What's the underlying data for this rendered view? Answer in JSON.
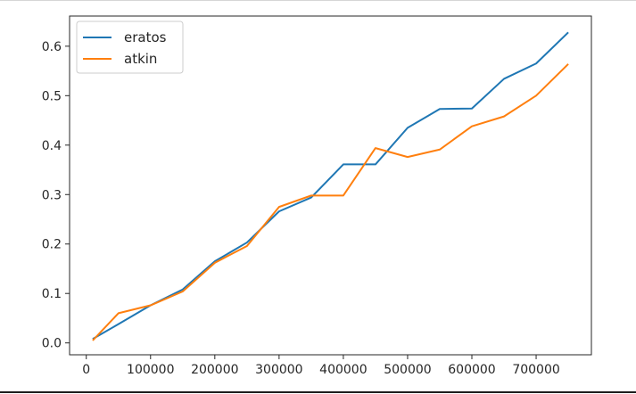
{
  "chart_data": {
    "type": "line",
    "title": "",
    "xlabel": "",
    "ylabel": "",
    "xlim": [
      -26000,
      786000
    ],
    "ylim": [
      -0.024,
      0.661
    ],
    "xticks": [
      0,
      100000,
      200000,
      300000,
      400000,
      500000,
      600000,
      700000
    ],
    "xtick_labels": [
      "0",
      "100000",
      "200000",
      "300000",
      "400000",
      "500000",
      "600000",
      "700000"
    ],
    "yticks": [
      0.0,
      0.1,
      0.2,
      0.3,
      0.4,
      0.5,
      0.6
    ],
    "ytick_labels": [
      "0.0",
      "0.1",
      "0.2",
      "0.3",
      "0.4",
      "0.5",
      "0.6"
    ],
    "grid": false,
    "legend": "top-left",
    "x": [
      10000,
      50000,
      100000,
      150000,
      200000,
      250000,
      300000,
      350000,
      400000,
      450000,
      500000,
      550000,
      600000,
      650000,
      700000,
      750000
    ],
    "series": [
      {
        "name": "eratos",
        "color": "#1f77b4",
        "values": [
          0.008,
          0.038,
          0.076,
          0.108,
          0.165,
          0.203,
          0.266,
          0.294,
          0.361,
          0.361,
          0.435,
          0.473,
          0.474,
          0.534,
          0.565,
          0.628
        ]
      },
      {
        "name": "atkin",
        "color": "#ff7f0e",
        "values": [
          0.005,
          0.06,
          0.076,
          0.104,
          0.162,
          0.196,
          0.275,
          0.298,
          0.298,
          0.394,
          0.376,
          0.391,
          0.438,
          0.458,
          0.5,
          0.564
        ]
      }
    ]
  }
}
